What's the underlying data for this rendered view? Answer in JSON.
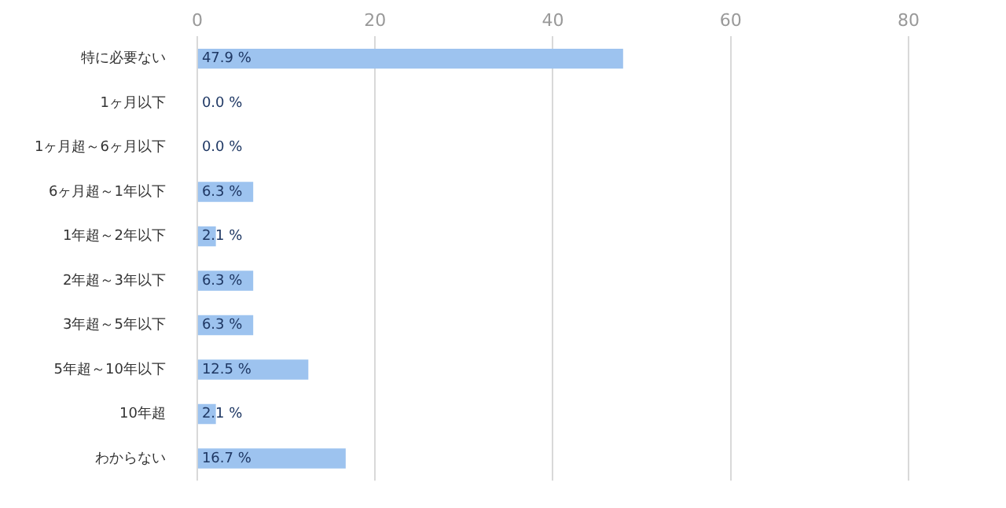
{
  "chart_data": {
    "type": "bar",
    "orientation": "horizontal",
    "categories": [
      "特に必要ない",
      "1ヶ月以下",
      "1ヶ月超～6ヶ月以下",
      "6ヶ月超～1年以下",
      "1年超～2年以下",
      "2年超～3年以下",
      "3年超～5年以下",
      "5年超～10年以下",
      "10年超",
      "わからない"
    ],
    "values": [
      47.9,
      0.0,
      0.0,
      6.3,
      2.1,
      6.3,
      6.3,
      12.5,
      2.1,
      16.7
    ],
    "value_labels": [
      "47.9 %",
      "0.0 %",
      "0.0 %",
      "6.3 %",
      "2.1 %",
      "6.3 %",
      "6.3 %",
      "12.5 %",
      "2.1 %",
      "16.7 %"
    ],
    "color": "#9dc3ef",
    "xlim": [
      0,
      80
    ],
    "xticks": [
      0,
      20,
      40,
      60,
      80
    ],
    "grid": "x",
    "legend": false
  }
}
